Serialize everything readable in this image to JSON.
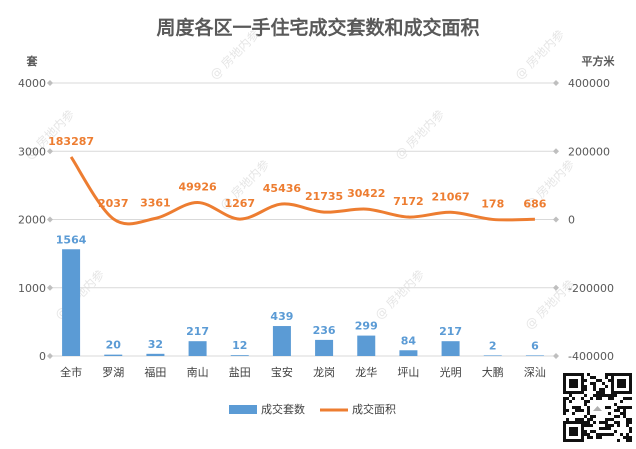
{
  "chart_data": {
    "type": "bar",
    "title": "周度各区一手住宅成交套数和成交面积",
    "left_unit": "套",
    "right_unit": "平方米",
    "categories": [
      "全市",
      "罗湖",
      "福田",
      "南山",
      "盐田",
      "宝安",
      "龙岗",
      "龙华",
      "坪山",
      "光明",
      "大鹏",
      "深汕"
    ],
    "left_axis": {
      "ylim": [
        0,
        4000
      ],
      "ticks": [
        "0",
        "1000",
        "2000",
        "3000",
        "4000"
      ]
    },
    "right_axis": {
      "ylim": [
        -400000,
        400000
      ],
      "ticks": [
        "-400000",
        "-200000",
        "0",
        "200000",
        "400000"
      ]
    },
    "grid": true,
    "legend_position": "bottom",
    "series": [
      {
        "name": "成交套数",
        "type": "bar",
        "axis": "left",
        "color": "#5b9bd5",
        "values": [
          1564,
          20,
          32,
          217,
          12,
          439,
          236,
          299,
          84,
          217,
          2,
          6
        ],
        "labels": [
          "1564",
          "20",
          "32",
          "217",
          "12",
          "439",
          "236",
          "299",
          "84",
          "217",
          "2",
          "6"
        ]
      },
      {
        "name": "成交面积",
        "type": "line",
        "axis": "right",
        "color": "#ed7d31",
        "values": [
          183287,
          2037,
          3361,
          49926,
          1267,
          45436,
          21735,
          30422,
          7172,
          21067,
          178,
          686
        ],
        "labels": [
          "183287",
          "2037",
          "3361",
          "49926",
          "1267",
          "45436",
          "21735",
          "30422",
          "7172",
          "21067",
          "178",
          "686"
        ]
      }
    ]
  },
  "watermark": "房地内参",
  "qr_icon": "qr-code-icon"
}
